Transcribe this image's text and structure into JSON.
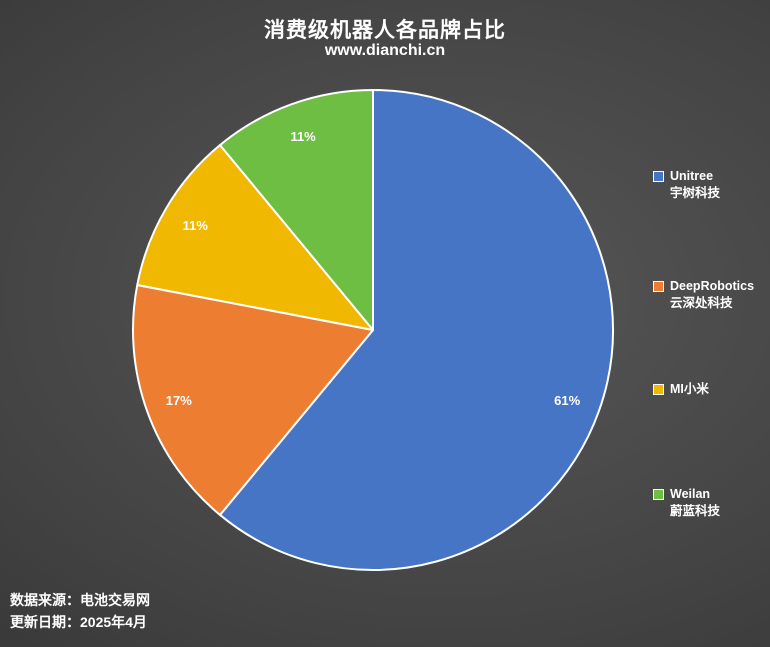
{
  "header": {
    "title": "消费级机器人各品牌占比",
    "subtitle": "www.dianchi.cn"
  },
  "chart_data": {
    "type": "pie",
    "title": "消费级机器人各品牌占比",
    "subtitle": "www.dianchi.cn",
    "unit": "%",
    "start_angle_deg": 0,
    "direction": "clockwise",
    "legend_position": "right",
    "categories": [
      "Unitree 宇树科技",
      "DeepRobotics 云深处科技",
      "MI小米",
      "Weilan 蔚蓝科技"
    ],
    "values": [
      61,
      17,
      11,
      11
    ],
    "slices": [
      {
        "legend_line1": "Unitree",
        "legend_line2": "宇树科技",
        "value_pct": 61,
        "data_label": "61%",
        "color": "#4775C6"
      },
      {
        "legend_line1": "DeepRobotics",
        "legend_line2": "云深处科技",
        "value_pct": 17,
        "data_label": "17%",
        "color": "#ED7D31"
      },
      {
        "legend_line1": "MI小米",
        "legend_line2": "",
        "value_pct": 11,
        "data_label": "11%",
        "color": "#F0B800"
      },
      {
        "legend_line1": "Weilan",
        "legend_line2": "蔚蓝科技",
        "value_pct": 11,
        "data_label": "11%",
        "color": "#6FBE44"
      }
    ]
  },
  "footer": {
    "source_line": "数据来源：电池交易网",
    "update_line": "更新日期：2025年4月"
  }
}
